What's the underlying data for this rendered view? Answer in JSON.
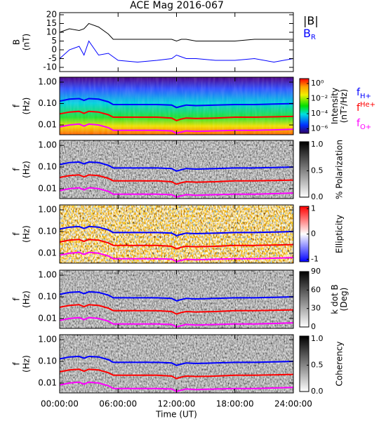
{
  "chart_data": [
    {
      "type": "line",
      "title": "ACE Mag 2016-067",
      "ylabel": [
        "B",
        "(nT)"
      ],
      "ylim": [
        -12.4,
        21.2
      ],
      "yticks": [
        -10,
        -5,
        0,
        5,
        10,
        15,
        20
      ],
      "x": [
        0,
        1,
        2,
        2.5,
        3,
        4,
        5,
        5.5,
        6,
        8,
        10,
        11.5,
        12,
        12.5,
        13,
        14,
        16,
        18,
        20,
        22,
        24
      ],
      "series": [
        {
          "name": "|B|",
          "color": "#000000",
          "values": [
            10,
            12,
            11,
            12,
            15,
            13,
            9,
            6,
            6,
            6,
            6,
            6,
            5,
            6,
            6,
            5,
            5,
            5,
            6,
            6,
            6
          ]
        },
        {
          "name": "B",
          "sub": "R",
          "color": "#0000ff",
          "values": [
            -5,
            0,
            2,
            -3,
            5,
            -3,
            -2,
            -4,
            -6,
            -7,
            -6,
            -5,
            -3,
            -4,
            -5,
            -5,
            -6,
            -6,
            -5,
            -7,
            -5
          ]
        }
      ]
    },
    {
      "type": "spectrogram",
      "palette": "rainbow",
      "ylabel": [
        "f",
        "(Hz)"
      ],
      "ylog": true,
      "ylim": [
        0.0035,
        1.7
      ],
      "yticks": [
        {
          "value": 1,
          "label": "1.00"
        },
        {
          "value": 0.1,
          "label": "0.10"
        },
        {
          "value": 0.01,
          "label": "0.01"
        }
      ],
      "clabel": [
        "Intensity",
        "(nT²/Hz)"
      ],
      "clim": [
        -6.6,
        0.65
      ],
      "cticks": [
        {
          "value": 0,
          "label": "10⁰"
        },
        {
          "value": -2,
          "label": "10⁻²"
        },
        {
          "value": -4,
          "label": "10⁻⁴"
        },
        {
          "value": -6,
          "label": "10⁻⁶"
        }
      ],
      "x": [
        0,
        1,
        2,
        2.5,
        3,
        4,
        5,
        5.5,
        6,
        8,
        10,
        11.5,
        12,
        12.5,
        13,
        14,
        16,
        18,
        20,
        22,
        24
      ],
      "series": [
        {
          "name": "f",
          "sub": "H+",
          "color": "#0000ff",
          "values": [
            0.13,
            0.16,
            0.17,
            0.14,
            0.17,
            0.16,
            0.12,
            0.09,
            0.09,
            0.09,
            0.09,
            0.085,
            0.065,
            0.075,
            0.085,
            0.08,
            0.085,
            0.09,
            0.09,
            0.095,
            0.1
          ]
        },
        {
          "name": "f",
          "sub": "He+",
          "color": "#ff0000",
          "values": [
            0.033,
            0.04,
            0.043,
            0.035,
            0.043,
            0.04,
            0.03,
            0.023,
            0.023,
            0.023,
            0.023,
            0.021,
            0.016,
            0.019,
            0.021,
            0.02,
            0.021,
            0.023,
            0.023,
            0.024,
            0.025
          ]
        },
        {
          "name": "f",
          "sub": "O+",
          "color": "#ff00ff",
          "values": [
            0.0081,
            0.01,
            0.011,
            0.0088,
            0.011,
            0.01,
            0.0075,
            0.0056,
            0.0056,
            0.0056,
            0.0056,
            0.0053,
            0.0041,
            0.0047,
            0.0053,
            0.005,
            0.0053,
            0.0056,
            0.0056,
            0.0059,
            0.0063
          ]
        }
      ]
    },
    {
      "type": "spectrogram",
      "palette": "gray",
      "ylabel": [
        "f",
        "(Hz)"
      ],
      "ylog": true,
      "ylim": [
        0.0035,
        1.7
      ],
      "yticks": [
        {
          "value": 1,
          "label": "1.00"
        },
        {
          "value": 0.1,
          "label": "0.10"
        },
        {
          "value": 0.01,
          "label": "0.01"
        }
      ],
      "clabel": [
        "% Polarization"
      ],
      "clim": [
        0,
        1.05
      ],
      "cticks": [
        {
          "value": 0,
          "label": "0.0"
        },
        0.5,
        {
          "value": 1,
          "label": "1.0"
        }
      ],
      "x": [
        0,
        1,
        2,
        2.5,
        3,
        4,
        5,
        5.5,
        6,
        8,
        10,
        11.5,
        12,
        12.5,
        13,
        14,
        16,
        18,
        20,
        22,
        24
      ],
      "series": [
        {
          "color": "#0000ff",
          "values": [
            0.13,
            0.16,
            0.17,
            0.14,
            0.17,
            0.16,
            0.12,
            0.09,
            0.09,
            0.09,
            0.09,
            0.085,
            0.065,
            0.075,
            0.085,
            0.08,
            0.085,
            0.09,
            0.09,
            0.095,
            0.1
          ]
        },
        {
          "color": "#ff0000",
          "values": [
            0.033,
            0.04,
            0.043,
            0.035,
            0.043,
            0.04,
            0.03,
            0.023,
            0.023,
            0.023,
            0.023,
            0.021,
            0.016,
            0.019,
            0.021,
            0.02,
            0.021,
            0.023,
            0.023,
            0.024,
            0.025
          ]
        },
        {
          "color": "#ff00ff",
          "values": [
            0.0081,
            0.01,
            0.011,
            0.0088,
            0.011,
            0.01,
            0.0075,
            0.0056,
            0.0056,
            0.0056,
            0.0056,
            0.0053,
            0.0041,
            0.0047,
            0.0053,
            0.005,
            0.0053,
            0.0056,
            0.0056,
            0.0059,
            0.0063
          ]
        }
      ]
    },
    {
      "type": "spectrogram",
      "palette": "redblue",
      "ylabel": [
        "f",
        "(Hz)"
      ],
      "ylog": true,
      "ylim": [
        0.0035,
        1.7
      ],
      "yticks": [
        {
          "value": 1,
          "label": "1.00"
        },
        {
          "value": 0.1,
          "label": "0.10"
        },
        {
          "value": 0.01,
          "label": "0.01"
        }
      ],
      "clabel": [
        "Ellipticity"
      ],
      "clim": [
        -1.1,
        1.1
      ],
      "cticks": [
        -1,
        0,
        1
      ],
      "x": [
        0,
        1,
        2,
        2.5,
        3,
        4,
        5,
        5.5,
        6,
        8,
        10,
        11.5,
        12,
        12.5,
        13,
        14,
        16,
        18,
        20,
        22,
        24
      ],
      "series": [
        {
          "color": "#0000ff",
          "values": [
            0.13,
            0.16,
            0.17,
            0.14,
            0.17,
            0.16,
            0.12,
            0.09,
            0.09,
            0.09,
            0.09,
            0.085,
            0.065,
            0.075,
            0.085,
            0.08,
            0.085,
            0.09,
            0.09,
            0.095,
            0.1
          ]
        },
        {
          "color": "#ff0000",
          "values": [
            0.033,
            0.04,
            0.043,
            0.035,
            0.043,
            0.04,
            0.03,
            0.023,
            0.023,
            0.023,
            0.023,
            0.021,
            0.016,
            0.019,
            0.021,
            0.02,
            0.021,
            0.023,
            0.023,
            0.024,
            0.025
          ]
        },
        {
          "color": "#ff00ff",
          "values": [
            0.0081,
            0.01,
            0.011,
            0.0088,
            0.011,
            0.01,
            0.0075,
            0.0056,
            0.0056,
            0.0056,
            0.0056,
            0.0053,
            0.0041,
            0.0047,
            0.0053,
            0.005,
            0.0053,
            0.0056,
            0.0056,
            0.0059,
            0.0063
          ]
        }
      ]
    },
    {
      "type": "spectrogram",
      "palette": "gray",
      "ylabel": [
        "f",
        "(Hz)"
      ],
      "ylog": true,
      "ylim": [
        0.0035,
        1.7
      ],
      "yticks": [
        {
          "value": 1,
          "label": "1.00"
        },
        {
          "value": 0.1,
          "label": "0.10"
        },
        {
          "value": 0.01,
          "label": "0.01"
        }
      ],
      "clabel": [
        "k dot B",
        "(Deg)"
      ],
      "clim": [
        0,
        90
      ],
      "cticks": [
        0,
        30,
        60,
        90
      ],
      "x": [
        0,
        1,
        2,
        2.5,
        3,
        4,
        5,
        5.5,
        6,
        8,
        10,
        11.5,
        12,
        12.5,
        13,
        14,
        16,
        18,
        20,
        22,
        24
      ],
      "series": [
        {
          "color": "#0000ff",
          "values": [
            0.13,
            0.16,
            0.17,
            0.14,
            0.17,
            0.16,
            0.12,
            0.09,
            0.09,
            0.09,
            0.09,
            0.085,
            0.065,
            0.075,
            0.085,
            0.08,
            0.085,
            0.09,
            0.09,
            0.095,
            0.1
          ]
        },
        {
          "color": "#ff0000",
          "values": [
            0.033,
            0.04,
            0.043,
            0.035,
            0.043,
            0.04,
            0.03,
            0.023,
            0.023,
            0.023,
            0.023,
            0.021,
            0.016,
            0.019,
            0.021,
            0.02,
            0.021,
            0.023,
            0.023,
            0.024,
            0.025
          ]
        },
        {
          "color": "#ff00ff",
          "values": [
            0.0081,
            0.01,
            0.011,
            0.0088,
            0.011,
            0.01,
            0.0075,
            0.0056,
            0.0056,
            0.0056,
            0.0056,
            0.0053,
            0.0041,
            0.0047,
            0.0053,
            0.005,
            0.0053,
            0.0056,
            0.0056,
            0.0059,
            0.0063
          ]
        }
      ]
    },
    {
      "type": "spectrogram",
      "palette": "gray",
      "ylabel": [
        "f",
        "(Hz)"
      ],
      "ylog": true,
      "ylim": [
        0.0035,
        1.7
      ],
      "yticks": [
        {
          "value": 1,
          "label": "1.00"
        },
        {
          "value": 0.1,
          "label": "0.10"
        },
        {
          "value": 0.01,
          "label": "0.01"
        }
      ],
      "clabel": [
        "Coherency"
      ],
      "clim": [
        0,
        1.05
      ],
      "cticks": [
        {
          "value": 0,
          "label": "0.0"
        },
        0.5,
        {
          "value": 1,
          "label": "1.0"
        }
      ],
      "xlabel": "Time (UT)",
      "xlim": [
        0,
        24
      ],
      "xticks": [
        {
          "value": 0,
          "label": "00:00:00"
        },
        {
          "value": 6,
          "label": "06:00:00"
        },
        {
          "value": 12,
          "label": "12:00:00"
        },
        {
          "value": 18,
          "label": "18:00:00"
        },
        {
          "value": 24,
          "label": "24:00:00"
        }
      ],
      "x": [
        0,
        1,
        2,
        2.5,
        3,
        4,
        5,
        5.5,
        6,
        8,
        10,
        11.5,
        12,
        12.5,
        13,
        14,
        16,
        18,
        20,
        22,
        24
      ],
      "series": [
        {
          "color": "#0000ff",
          "values": [
            0.13,
            0.16,
            0.17,
            0.14,
            0.17,
            0.16,
            0.12,
            0.09,
            0.09,
            0.09,
            0.09,
            0.085,
            0.065,
            0.075,
            0.085,
            0.08,
            0.085,
            0.09,
            0.09,
            0.095,
            0.1
          ]
        },
        {
          "color": "#ff0000",
          "values": [
            0.033,
            0.04,
            0.043,
            0.035,
            0.043,
            0.04,
            0.03,
            0.023,
            0.023,
            0.023,
            0.023,
            0.021,
            0.016,
            0.019,
            0.021,
            0.02,
            0.021,
            0.023,
            0.023,
            0.024,
            0.025
          ]
        },
        {
          "color": "#ff00ff",
          "values": [
            0.0081,
            0.01,
            0.011,
            0.0088,
            0.011,
            0.01,
            0.0075,
            0.0056,
            0.0056,
            0.0056,
            0.0056,
            0.0053,
            0.0041,
            0.0047,
            0.0053,
            0.005,
            0.0053,
            0.0056,
            0.0056,
            0.0059,
            0.0063
          ]
        }
      ]
    }
  ]
}
